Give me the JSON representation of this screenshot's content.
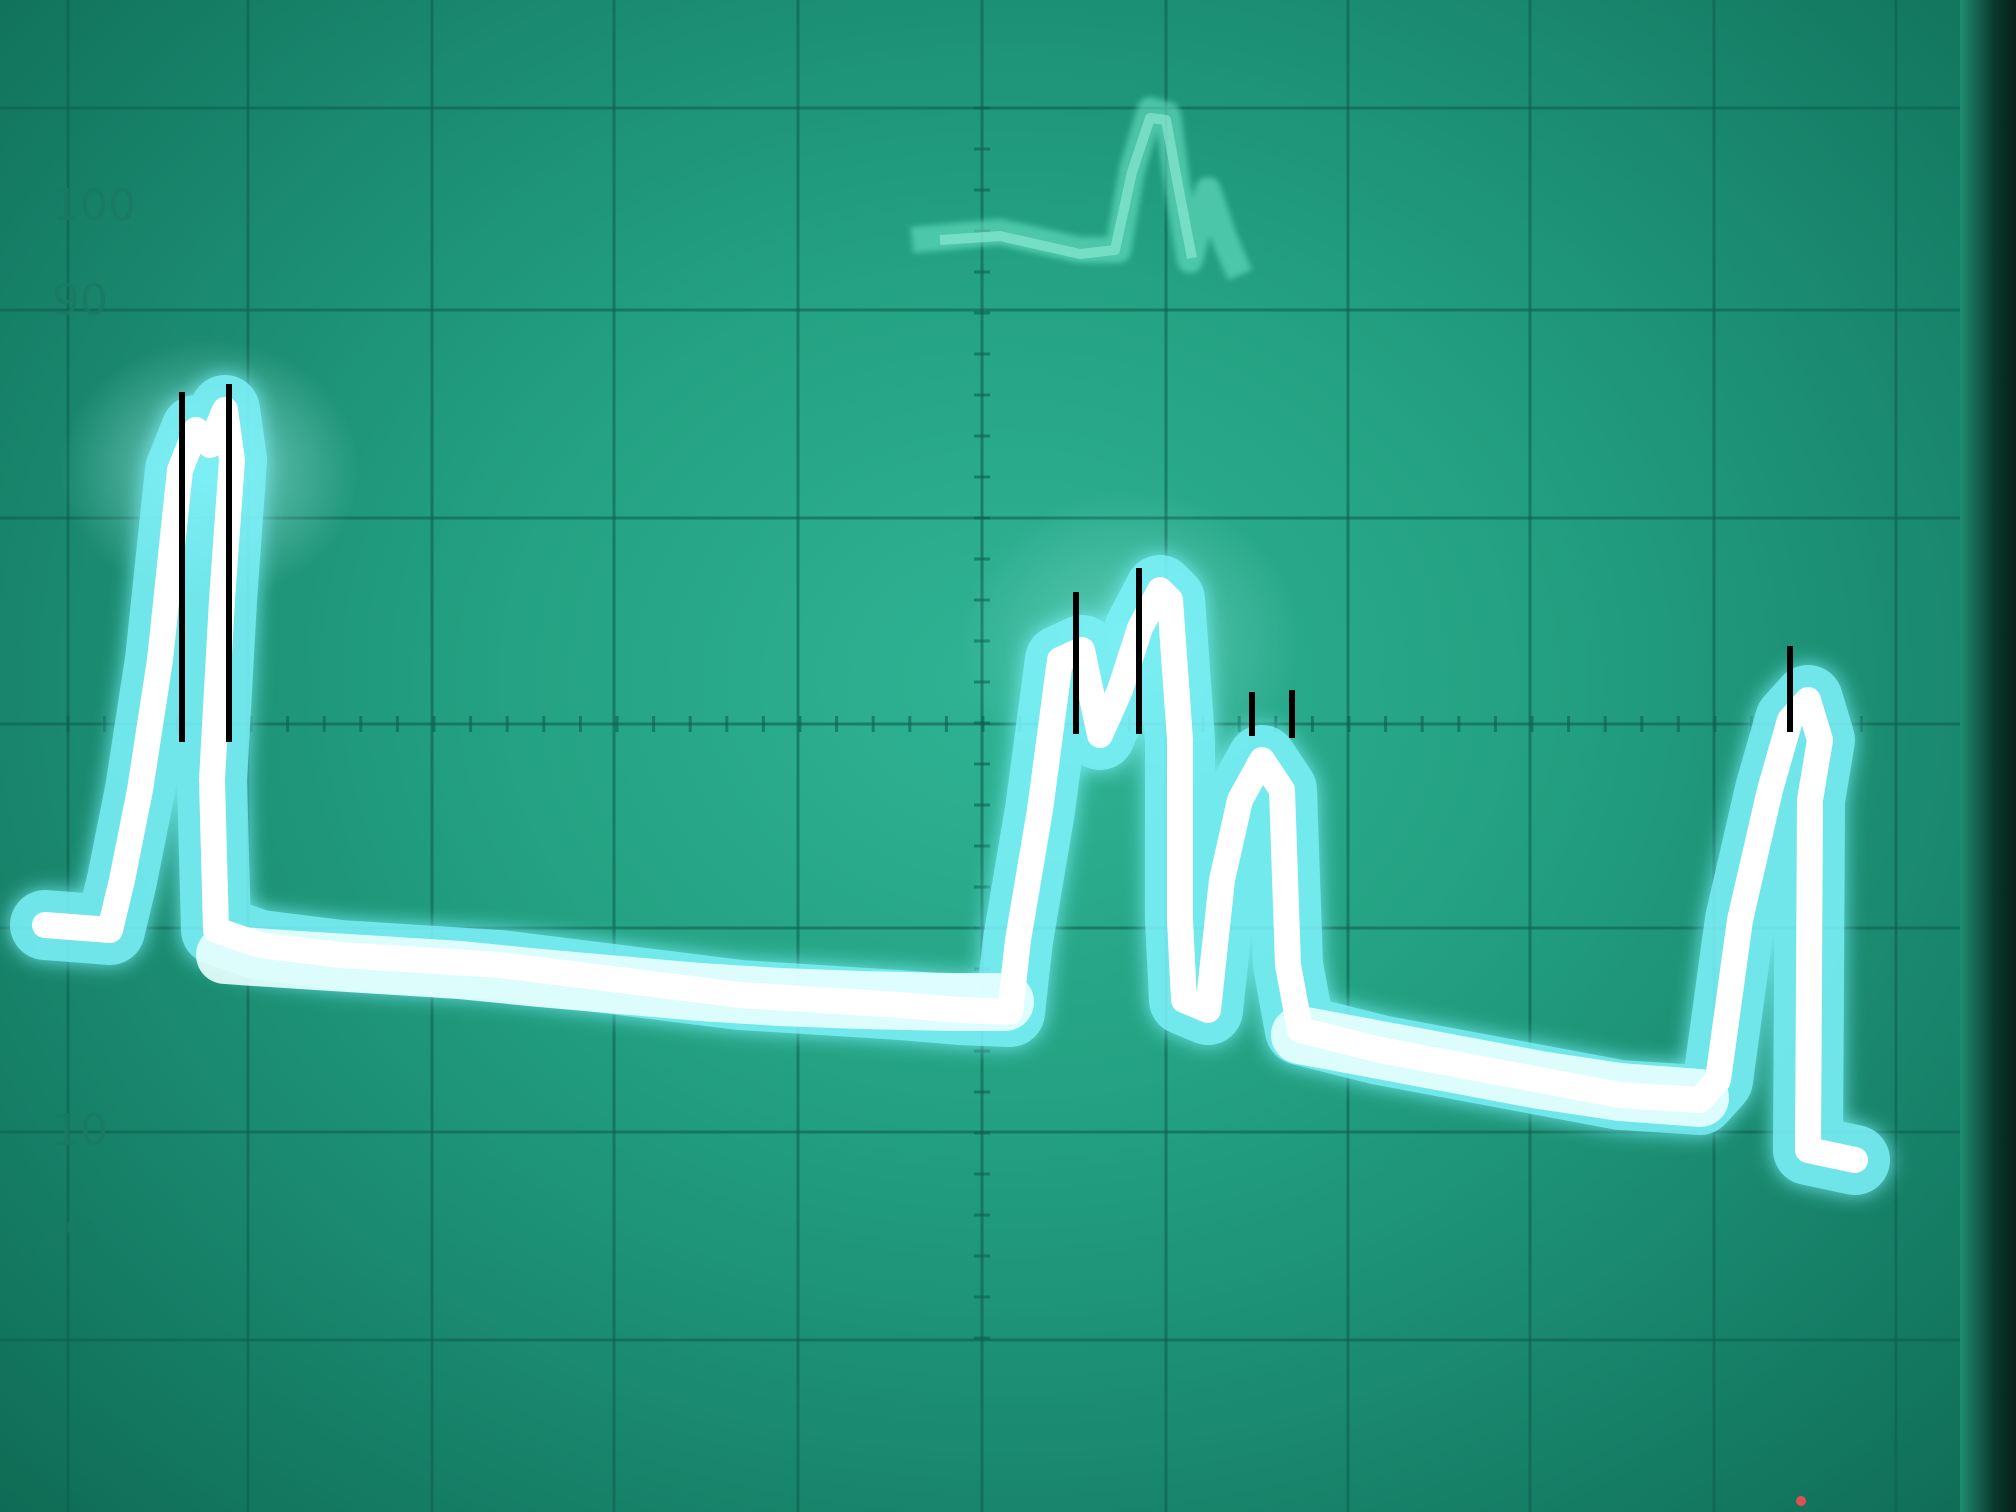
{
  "scale_labels": {
    "top": "100",
    "upper": "90",
    "lower": "10",
    "bottom": "0%"
  },
  "colors": {
    "screen": "#24a283",
    "trace_core": "#ffffff",
    "trace_glow": "#7ff5ff",
    "grid": "#0e6050",
    "marker": "#000000"
  }
}
